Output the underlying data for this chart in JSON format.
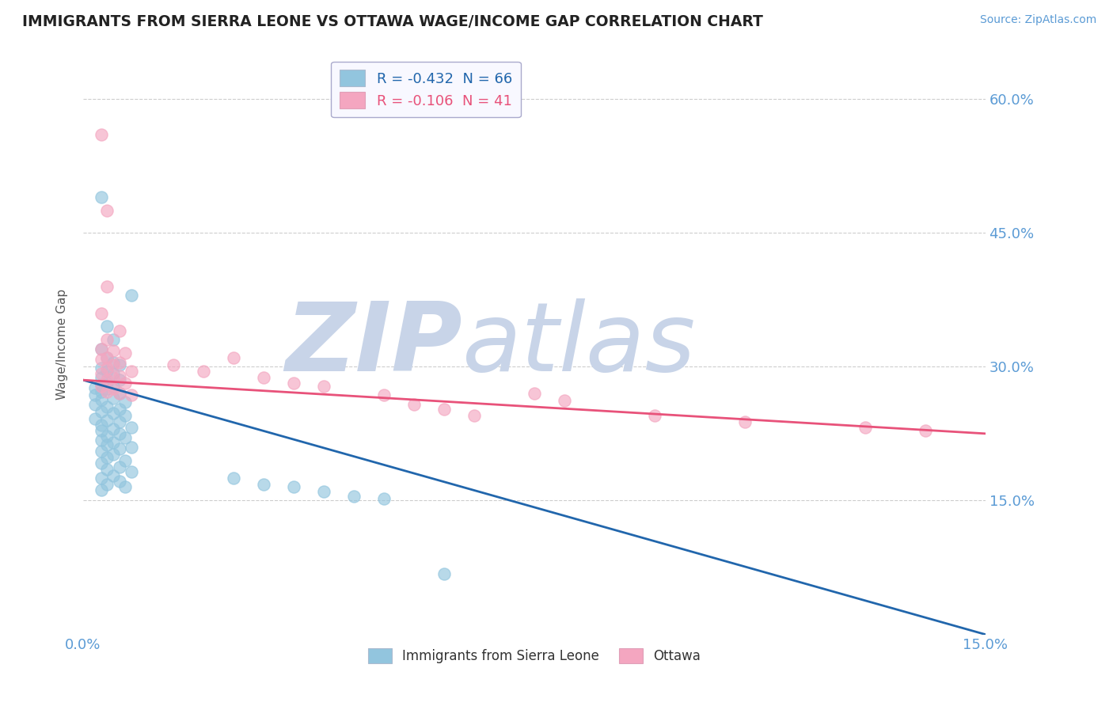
{
  "title": "IMMIGRANTS FROM SIERRA LEONE VS OTTAWA WAGE/INCOME GAP CORRELATION CHART",
  "source": "Source: ZipAtlas.com",
  "ylabel": "Wage/Income Gap",
  "y_ticks_right": [
    0.15,
    0.3,
    0.45,
    0.6
  ],
  "y_tick_labels_right": [
    "15.0%",
    "30.0%",
    "45.0%",
    "60.0%"
  ],
  "x_ticks": [
    0.0,
    0.015,
    0.03,
    0.045,
    0.06,
    0.075,
    0.09,
    0.105,
    0.12,
    0.135,
    0.15
  ],
  "legend_blue_label": "R = -0.432  N = 66",
  "legend_pink_label": "R = -0.106  N = 41",
  "legend_label_blue": "Immigrants from Sierra Leone",
  "legend_label_pink": "Ottawa",
  "blue_color": "#92c5de",
  "pink_color": "#f4a6c0",
  "trendline_blue": "#2166ac",
  "trendline_pink": "#e8527a",
  "xlim": [
    0.0,
    0.15
  ],
  "ylim": [
    0.0,
    0.65
  ],
  "background_color": "#ffffff",
  "grid_color": "#c8c8c8",
  "title_color": "#222222",
  "axis_label_color": "#5b9bd5",
  "blue_trend_x": [
    0.0,
    0.15
  ],
  "blue_trend_y": [
    0.285,
    0.0
  ],
  "pink_trend_x": [
    0.0,
    0.15
  ],
  "pink_trend_y": [
    0.285,
    0.225
  ],
  "blue_scatter": [
    [
      0.003,
      0.49
    ],
    [
      0.008,
      0.38
    ],
    [
      0.004,
      0.345
    ],
    [
      0.005,
      0.33
    ],
    [
      0.003,
      0.32
    ],
    [
      0.004,
      0.31
    ],
    [
      0.005,
      0.305
    ],
    [
      0.006,
      0.302
    ],
    [
      0.003,
      0.298
    ],
    [
      0.004,
      0.295
    ],
    [
      0.005,
      0.292
    ],
    [
      0.003,
      0.288
    ],
    [
      0.006,
      0.285
    ],
    [
      0.004,
      0.282
    ],
    [
      0.003,
      0.28
    ],
    [
      0.005,
      0.278
    ],
    [
      0.002,
      0.276
    ],
    [
      0.004,
      0.275
    ],
    [
      0.003,
      0.272
    ],
    [
      0.006,
      0.27
    ],
    [
      0.002,
      0.268
    ],
    [
      0.005,
      0.265
    ],
    [
      0.003,
      0.263
    ],
    [
      0.007,
      0.26
    ],
    [
      0.002,
      0.258
    ],
    [
      0.004,
      0.255
    ],
    [
      0.006,
      0.252
    ],
    [
      0.003,
      0.25
    ],
    [
      0.005,
      0.248
    ],
    [
      0.007,
      0.245
    ],
    [
      0.002,
      0.242
    ],
    [
      0.004,
      0.24
    ],
    [
      0.006,
      0.238
    ],
    [
      0.003,
      0.235
    ],
    [
      0.008,
      0.232
    ],
    [
      0.005,
      0.23
    ],
    [
      0.003,
      0.228
    ],
    [
      0.006,
      0.225
    ],
    [
      0.004,
      0.222
    ],
    [
      0.007,
      0.22
    ],
    [
      0.003,
      0.218
    ],
    [
      0.005,
      0.215
    ],
    [
      0.004,
      0.212
    ],
    [
      0.008,
      0.21
    ],
    [
      0.006,
      0.208
    ],
    [
      0.003,
      0.205
    ],
    [
      0.005,
      0.202
    ],
    [
      0.004,
      0.198
    ],
    [
      0.007,
      0.195
    ],
    [
      0.003,
      0.192
    ],
    [
      0.006,
      0.188
    ],
    [
      0.004,
      0.185
    ],
    [
      0.008,
      0.182
    ],
    [
      0.005,
      0.178
    ],
    [
      0.003,
      0.175
    ],
    [
      0.006,
      0.172
    ],
    [
      0.004,
      0.168
    ],
    [
      0.007,
      0.165
    ],
    [
      0.003,
      0.162
    ],
    [
      0.025,
      0.175
    ],
    [
      0.03,
      0.168
    ],
    [
      0.035,
      0.165
    ],
    [
      0.04,
      0.16
    ],
    [
      0.045,
      0.155
    ],
    [
      0.05,
      0.152
    ],
    [
      0.06,
      0.068
    ]
  ],
  "pink_scatter": [
    [
      0.003,
      0.56
    ],
    [
      0.004,
      0.475
    ],
    [
      0.004,
      0.39
    ],
    [
      0.003,
      0.36
    ],
    [
      0.006,
      0.34
    ],
    [
      0.004,
      0.33
    ],
    [
      0.003,
      0.32
    ],
    [
      0.005,
      0.318
    ],
    [
      0.007,
      0.315
    ],
    [
      0.004,
      0.31
    ],
    [
      0.003,
      0.308
    ],
    [
      0.006,
      0.305
    ],
    [
      0.005,
      0.302
    ],
    [
      0.004,
      0.298
    ],
    [
      0.008,
      0.295
    ],
    [
      0.003,
      0.292
    ],
    [
      0.006,
      0.29
    ],
    [
      0.005,
      0.288
    ],
    [
      0.004,
      0.285
    ],
    [
      0.007,
      0.282
    ],
    [
      0.003,
      0.278
    ],
    [
      0.005,
      0.275
    ],
    [
      0.004,
      0.272
    ],
    [
      0.006,
      0.27
    ],
    [
      0.008,
      0.268
    ],
    [
      0.015,
      0.302
    ],
    [
      0.02,
      0.295
    ],
    [
      0.025,
      0.31
    ],
    [
      0.03,
      0.288
    ],
    [
      0.035,
      0.282
    ],
    [
      0.04,
      0.278
    ],
    [
      0.05,
      0.268
    ],
    [
      0.055,
      0.258
    ],
    [
      0.06,
      0.252
    ],
    [
      0.065,
      0.245
    ],
    [
      0.075,
      0.27
    ],
    [
      0.08,
      0.262
    ],
    [
      0.095,
      0.245
    ],
    [
      0.11,
      0.238
    ],
    [
      0.13,
      0.232
    ],
    [
      0.14,
      0.228
    ]
  ]
}
